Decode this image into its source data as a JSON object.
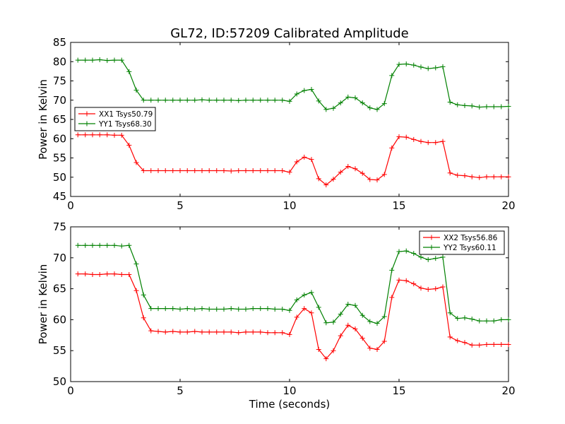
{
  "title": "GL72, ID:57209 Calibrated Amplitude",
  "colors": {
    "red": "#ff0000",
    "green": "#008000"
  },
  "chart_data": [
    {
      "type": "line",
      "title": "GL72, ID:57209 Calibrated Amplitude",
      "xlabel": "",
      "ylabel": "Power in Kelvin",
      "xlim": [
        0,
        20
      ],
      "ylim": [
        45,
        85
      ],
      "xticks": [
        "0",
        "5",
        "10",
        "15",
        "20"
      ],
      "yticks": [
        "45",
        "50",
        "55",
        "60",
        "65",
        "70",
        "75",
        "80",
        "85"
      ],
      "grid": false,
      "legend_position": "center-left",
      "x": [
        0.33,
        0.67,
        1.0,
        1.33,
        1.67,
        2.0,
        2.33,
        2.67,
        3.0,
        3.33,
        3.67,
        4.0,
        4.33,
        4.67,
        5.0,
        5.33,
        5.67,
        6.0,
        6.33,
        6.67,
        7.0,
        7.33,
        7.67,
        8.0,
        8.33,
        8.67,
        9.0,
        9.33,
        9.67,
        10.0,
        10.33,
        10.67,
        11.0,
        11.33,
        11.67,
        12.0,
        12.33,
        12.67,
        13.0,
        13.33,
        13.67,
        14.0,
        14.33,
        14.67,
        15.0,
        15.33,
        15.67,
        16.0,
        16.33,
        16.67,
        17.0,
        17.33,
        17.67,
        18.0,
        18.33,
        18.67,
        19.0,
        19.33,
        19.67,
        20.0
      ],
      "series": [
        {
          "name": "XX1 Tsys50.79",
          "color": "#ff0000",
          "values": [
            61.0,
            61.0,
            61.0,
            61.0,
            61.0,
            60.9,
            60.9,
            58.3,
            53.8,
            51.7,
            51.7,
            51.7,
            51.7,
            51.7,
            51.7,
            51.7,
            51.7,
            51.7,
            51.7,
            51.7,
            51.7,
            51.6,
            51.7,
            51.7,
            51.7,
            51.7,
            51.7,
            51.7,
            51.7,
            51.3,
            54.0,
            55.2,
            54.6,
            49.6,
            48.0,
            49.5,
            51.3,
            52.8,
            52.2,
            51.0,
            49.4,
            49.3,
            50.7,
            57.6,
            60.5,
            60.4,
            59.8,
            59.3,
            59.0,
            59.0,
            59.3,
            51.1,
            50.5,
            50.4,
            50.1,
            49.9,
            50.1,
            50.1,
            50.1,
            50.1
          ]
        },
        {
          "name": "YY1 Tsys68.30",
          "color": "#008000",
          "values": [
            80.4,
            80.4,
            80.4,
            80.5,
            80.3,
            80.4,
            80.4,
            77.4,
            72.6,
            70.0,
            70.0,
            70.0,
            70.0,
            70.0,
            70.0,
            70.0,
            70.0,
            70.1,
            70.0,
            70.0,
            70.0,
            70.0,
            69.9,
            70.0,
            70.0,
            70.0,
            70.0,
            70.0,
            70.0,
            69.7,
            71.6,
            72.5,
            72.8,
            69.8,
            67.6,
            67.9,
            69.3,
            70.8,
            70.6,
            69.3,
            68.0,
            67.6,
            69.1,
            76.4,
            79.3,
            79.4,
            79.1,
            78.6,
            78.2,
            78.4,
            78.7,
            69.5,
            68.8,
            68.6,
            68.5,
            68.2,
            68.3,
            68.3,
            68.3,
            68.4
          ]
        }
      ]
    },
    {
      "type": "line",
      "title": "",
      "xlabel": "Time (seconds)",
      "ylabel": "Power in Kelvin",
      "xlim": [
        0,
        20
      ],
      "ylim": [
        50,
        75
      ],
      "xticks": [
        "0",
        "5",
        "10",
        "15",
        "20"
      ],
      "yticks": [
        "50",
        "55",
        "60",
        "65",
        "70",
        "75"
      ],
      "grid": false,
      "legend_position": "top-right",
      "x": [
        0.33,
        0.67,
        1.0,
        1.33,
        1.67,
        2.0,
        2.33,
        2.67,
        3.0,
        3.33,
        3.67,
        4.0,
        4.33,
        4.67,
        5.0,
        5.33,
        5.67,
        6.0,
        6.33,
        6.67,
        7.0,
        7.33,
        7.67,
        8.0,
        8.33,
        8.67,
        9.0,
        9.33,
        9.67,
        10.0,
        10.33,
        10.67,
        11.0,
        11.33,
        11.67,
        12.0,
        12.33,
        12.67,
        13.0,
        13.33,
        13.67,
        14.0,
        14.33,
        14.67,
        15.0,
        15.33,
        15.67,
        16.0,
        16.33,
        16.67,
        17.0,
        17.33,
        17.67,
        18.0,
        18.33,
        18.67,
        19.0,
        19.33,
        19.67,
        20.0
      ],
      "series": [
        {
          "name": "XX2 Tsys56.86",
          "color": "#ff0000",
          "values": [
            67.4,
            67.4,
            67.3,
            67.3,
            67.4,
            67.4,
            67.3,
            67.3,
            64.7,
            60.3,
            58.2,
            58.1,
            58.0,
            58.1,
            58.0,
            58.0,
            58.1,
            58.0,
            58.0,
            58.0,
            58.0,
            58.0,
            57.9,
            58.0,
            58.0,
            58.0,
            57.9,
            57.9,
            57.9,
            57.6,
            60.4,
            61.8,
            61.1,
            55.2,
            53.7,
            55.0,
            57.4,
            59.1,
            58.5,
            57.0,
            55.4,
            55.2,
            56.5,
            63.6,
            66.4,
            66.3,
            65.8,
            65.1,
            64.9,
            65.0,
            65.3,
            57.2,
            56.6,
            56.3,
            55.9,
            55.9,
            56.0,
            56.0,
            56.0,
            56.0
          ]
        },
        {
          "name": "YY2 Tsys60.11",
          "color": "#008000",
          "values": [
            72.0,
            72.0,
            72.0,
            72.0,
            72.0,
            72.0,
            71.9,
            72.0,
            69.0,
            64.0,
            61.8,
            61.8,
            61.8,
            61.8,
            61.7,
            61.8,
            61.7,
            61.8,
            61.7,
            61.7,
            61.7,
            61.8,
            61.7,
            61.7,
            61.8,
            61.8,
            61.8,
            61.7,
            61.7,
            61.5,
            63.2,
            64.0,
            64.4,
            62.0,
            59.5,
            59.6,
            60.9,
            62.5,
            62.3,
            60.7,
            59.7,
            59.4,
            60.5,
            68.0,
            71.0,
            71.1,
            70.7,
            70.1,
            69.7,
            69.9,
            70.1,
            61.1,
            60.2,
            60.3,
            60.1,
            59.8,
            59.8,
            59.8,
            60.0,
            60.0
          ]
        }
      ]
    }
  ]
}
